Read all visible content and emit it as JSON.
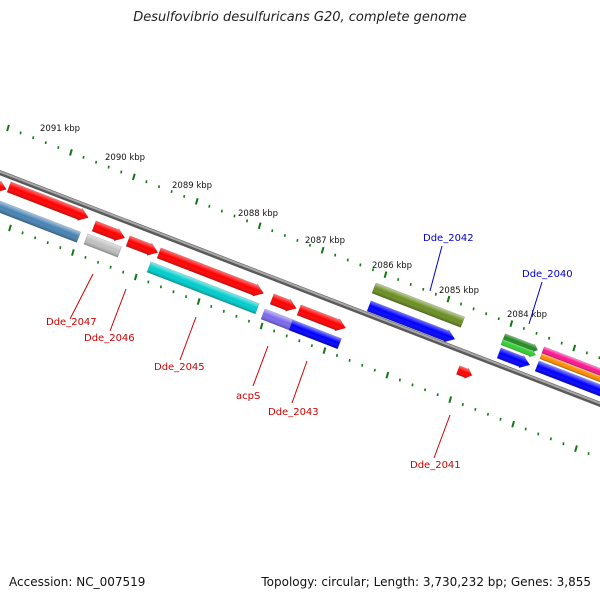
{
  "title": "Desulfovibrio desulfuricans G20, complete genome",
  "footer": {
    "accession": "Accession: NC_007519",
    "summary": "Topology: circular; Length: 3,730,232 bp; Genes: 3,855"
  },
  "colors": {
    "backbone": "#808080",
    "tick": "#117711",
    "label_red": "#cc0000",
    "label_blue": "#0000cc"
  },
  "scale": {
    "unit": "kbp",
    "ticks": [
      {
        "label": "2091 kbp",
        "kbp": 2091
      },
      {
        "label": "2090 kbp",
        "kbp": 2090
      },
      {
        "label": "2089 kbp",
        "kbp": 2089
      },
      {
        "label": "2088 kbp",
        "kbp": 2088
      },
      {
        "label": "2087 kbp",
        "kbp": 2087
      },
      {
        "label": "2086 kbp",
        "kbp": 2086
      },
      {
        "label": "2085 kbp",
        "kbp": 2085
      },
      {
        "label": "2084 kbp",
        "kbp": 2084
      }
    ]
  },
  "features": [
    {
      "id": "f1",
      "strand": "forward",
      "color": "#ff0000"
    },
    {
      "id": "f2",
      "strand": "forward",
      "color": "#ff0000"
    },
    {
      "id": "f3",
      "strand": "forward",
      "color": "#ff0000"
    },
    {
      "id": "f4",
      "strand": "forward",
      "color": "#ff0000"
    },
    {
      "id": "f5",
      "strand": "forward",
      "color": "#ff0000"
    },
    {
      "id": "f6",
      "strand": "forward",
      "color": "#ff0000"
    },
    {
      "id": "f7",
      "strand": "forward",
      "color": "#ff0000"
    },
    {
      "id": "f8",
      "strand": "forward",
      "color": "#ff0000"
    },
    {
      "id": "f9",
      "strand": "forward",
      "color": "#6b8e23"
    },
    {
      "id": "f10",
      "strand": "forward",
      "color": "#228b22"
    },
    {
      "id": "f11",
      "strand": "forward",
      "color": "#32cd32"
    },
    {
      "id": "f12",
      "strand": "forward",
      "color": "#ff1493"
    },
    {
      "id": "f13",
      "strand": "forward",
      "color": "#ff8c00"
    },
    {
      "id": "r1",
      "strand": "reverse",
      "color": "#4682b4"
    },
    {
      "id": "r2",
      "strand": "reverse",
      "color": "#c0c0c0"
    },
    {
      "id": "r3",
      "strand": "reverse",
      "color": "#00cdcd"
    },
    {
      "id": "r4",
      "strand": "reverse",
      "color": "#7b68ee"
    },
    {
      "id": "r5",
      "strand": "reverse",
      "color": "#0000ff"
    },
    {
      "id": "r6",
      "strand": "reverse",
      "color": "#0000ff"
    },
    {
      "id": "r7",
      "strand": "reverse",
      "color": "#0000ff"
    },
    {
      "id": "r8",
      "strand": "reverse",
      "color": "#0000ff"
    }
  ],
  "labels": [
    {
      "text": "Dde_2047",
      "color": "#cc0000"
    },
    {
      "text": "Dde_2046",
      "color": "#cc0000"
    },
    {
      "text": "Dde_2045",
      "color": "#cc0000"
    },
    {
      "text": "acpS",
      "color": "#cc0000"
    },
    {
      "text": "Dde_2043",
      "color": "#cc0000"
    },
    {
      "text": "Dde_2041",
      "color": "#cc0000"
    },
    {
      "text": "Dde_2042",
      "color": "#0000cc"
    },
    {
      "text": "Dde_2040",
      "color": "#0000cc"
    }
  ]
}
